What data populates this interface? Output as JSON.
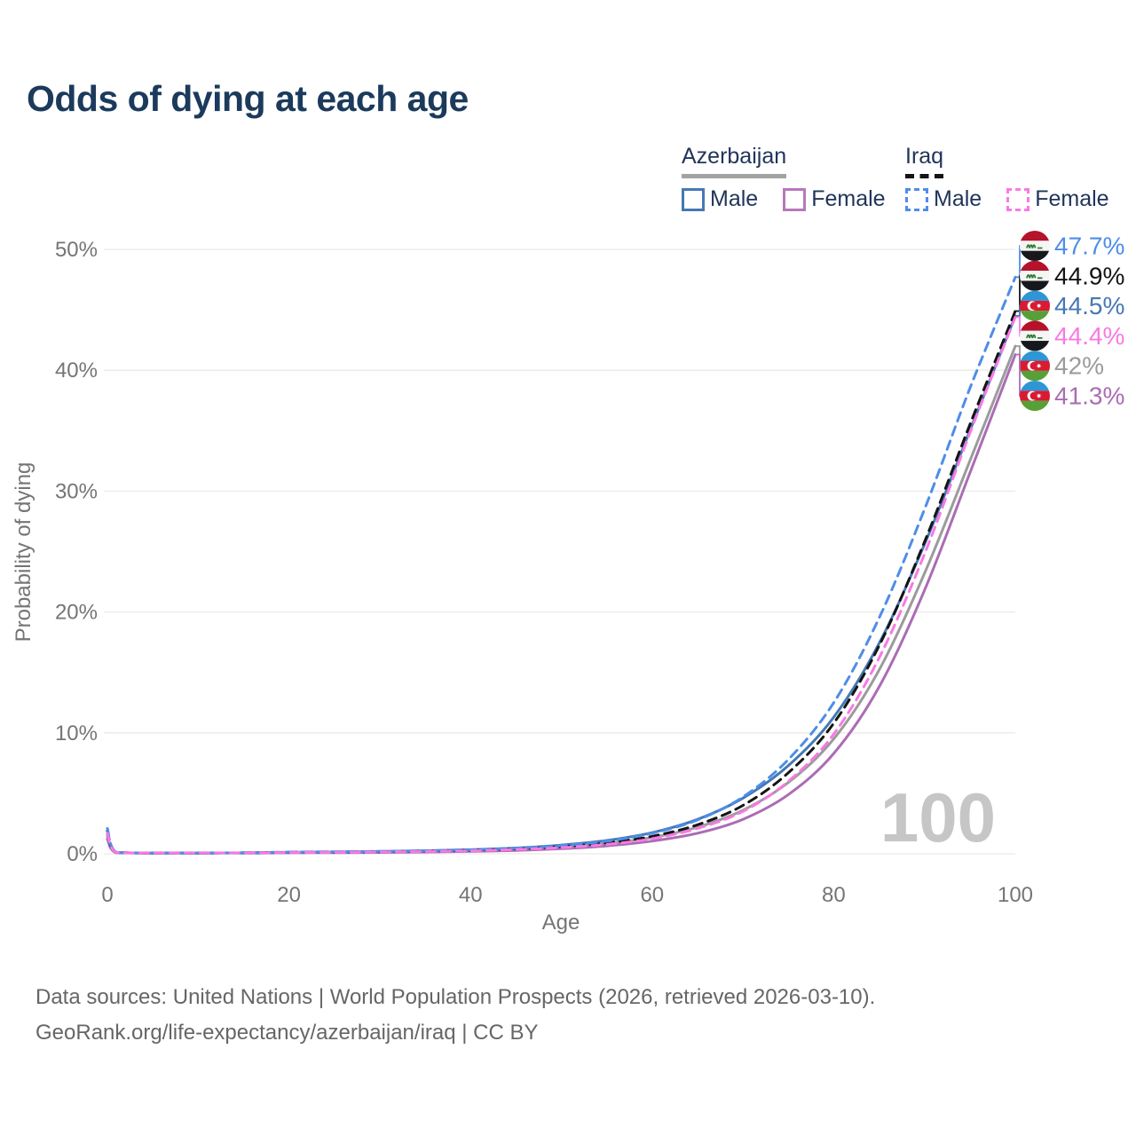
{
  "title": "Odds of dying at each age",
  "watermark_age": "100",
  "legend": {
    "groups": [
      {
        "country": "Azerbaijan",
        "line_style": "solid",
        "underline_color": "#a3a3a3",
        "items": [
          {
            "label": "Male",
            "color": "#4678b4"
          },
          {
            "label": "Female",
            "color": "#b878ba"
          }
        ]
      },
      {
        "country": "Iraq",
        "line_style": "dashed",
        "underline_color": "#141414",
        "items": [
          {
            "label": "Male",
            "color": "#4e8de8"
          },
          {
            "label": "Female",
            "color": "#f879e3"
          }
        ]
      }
    ]
  },
  "chart_data": {
    "type": "line",
    "title": "Odds of dying at each age",
    "xlabel": "Age",
    "ylabel": "Probability of dying",
    "xlim": [
      0,
      100
    ],
    "ylim": [
      0,
      50
    ],
    "x_tick_values": [
      0,
      20,
      40,
      60,
      80,
      100
    ],
    "x_tick_labels": [
      "0",
      "20",
      "40",
      "60",
      "80",
      "100"
    ],
    "y_tick_values": [
      0,
      10,
      20,
      30,
      40,
      50
    ],
    "y_tick_labels": [
      "0%",
      "10%",
      "20%",
      "30%",
      "40%",
      "50%"
    ],
    "grid": true,
    "legend_position": "top-right",
    "ages": [
      0,
      1,
      5,
      10,
      15,
      20,
      25,
      30,
      35,
      40,
      45,
      50,
      55,
      60,
      65,
      70,
      75,
      80,
      85,
      90,
      95,
      100
    ],
    "series": [
      {
        "id": "az_total",
        "name": "Azerbaijan Total",
        "country": "azerbaijan",
        "sex": "total",
        "color": "#9b9b9b",
        "dash": false,
        "end_label": "42%",
        "values": [
          1.4,
          0.09,
          0.045,
          0.045,
          0.065,
          0.1,
          0.12,
          0.15,
          0.2,
          0.27,
          0.38,
          0.56,
          0.85,
          1.35,
          2.2,
          3.6,
          5.9,
          9.5,
          15.2,
          23.2,
          32.5,
          42.0
        ]
      },
      {
        "id": "az_female",
        "name": "Azerbaijan Female",
        "country": "azerbaijan",
        "sex": "female",
        "color": "#ab6cb5",
        "dash": false,
        "end_label": "41.3%",
        "values": [
          1.2,
          0.08,
          0.04,
          0.04,
          0.055,
          0.08,
          0.09,
          0.11,
          0.15,
          0.2,
          0.28,
          0.42,
          0.65,
          1.05,
          1.7,
          2.85,
          4.9,
          8.3,
          13.8,
          21.8,
          31.5,
          41.3
        ]
      },
      {
        "id": "az_male",
        "name": "Azerbaijan Male",
        "country": "azerbaijan",
        "sex": "male",
        "color": "#4678b4",
        "dash": false,
        "end_label": "44.5%",
        "values": [
          1.6,
          0.1,
          0.05,
          0.05,
          0.08,
          0.12,
          0.15,
          0.19,
          0.25,
          0.34,
          0.48,
          0.72,
          1.1,
          1.75,
          2.85,
          4.6,
          7.3,
          11.3,
          17.4,
          25.6,
          35.0,
          44.5
        ]
      },
      {
        "id": "iraq_total",
        "name": "Iraq Total",
        "country": "iraq",
        "sex": "total",
        "color": "#141414",
        "dash": true,
        "end_label": "44.9%",
        "values": [
          1.9,
          0.11,
          0.055,
          0.055,
          0.08,
          0.12,
          0.14,
          0.17,
          0.22,
          0.29,
          0.4,
          0.59,
          0.9,
          1.45,
          2.4,
          4.0,
          6.7,
          10.8,
          17.2,
          25.8,
          35.5,
          44.9
        ]
      },
      {
        "id": "iraq_male",
        "name": "Iraq Male",
        "country": "iraq",
        "sex": "male",
        "color": "#4e8de8",
        "dash": true,
        "end_label": "47.7%",
        "values": [
          2.1,
          0.12,
          0.06,
          0.06,
          0.09,
          0.14,
          0.17,
          0.2,
          0.25,
          0.33,
          0.46,
          0.68,
          1.05,
          1.7,
          2.8,
          4.7,
          7.8,
          12.5,
          19.5,
          28.5,
          38.5,
          47.7
        ]
      },
      {
        "id": "iraq_female",
        "name": "Iraq Female",
        "country": "iraq",
        "sex": "female",
        "color": "#f879e3",
        "dash": true,
        "end_label": "44.4%",
        "values": [
          1.7,
          0.1,
          0.05,
          0.05,
          0.07,
          0.1,
          0.12,
          0.15,
          0.19,
          0.25,
          0.35,
          0.51,
          0.78,
          1.25,
          2.1,
          3.5,
          6.0,
          9.9,
          16.2,
          24.8,
          34.8,
          44.4
        ]
      }
    ]
  },
  "footer": {
    "line1": "Data sources: United Nations | World Population Prospects (2026, retrieved 2026-03-10).",
    "line2": "GeoRank.org/life-expectancy/azerbaijan/iraq | CC BY"
  },
  "colors": {
    "title": "#1b3a5c",
    "axis_text": "#757575",
    "gridline": "#e9e9e9",
    "watermark": "#c6c6c6",
    "footer_text": "#666666",
    "legend_text": "#21355a",
    "iraq_flag": {
      "red": "#b5122b",
      "white": "#f5f5f5",
      "black": "#17181c",
      "green": "#2e7d32"
    },
    "azerbaijan_flag": {
      "blue": "#2f96d5",
      "red": "#d81a32",
      "green": "#57a038",
      "white": "#ffffff"
    }
  }
}
